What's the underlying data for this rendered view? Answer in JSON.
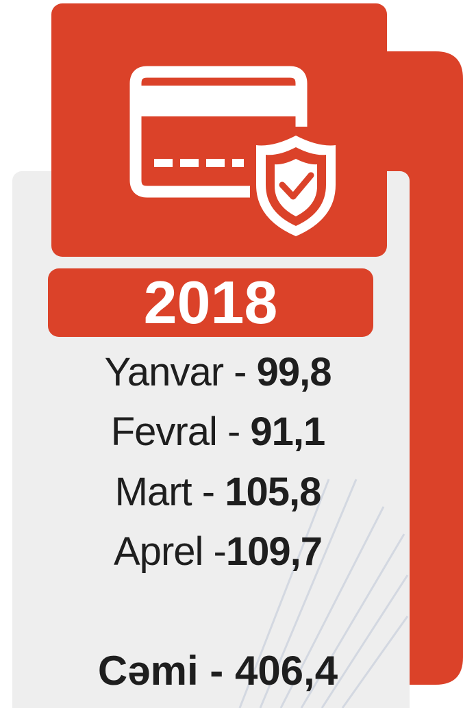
{
  "year": "2018",
  "rows": [
    {
      "label": "Yanvar - ",
      "value": "99,8"
    },
    {
      "label": "Fevral - ",
      "value": "91,1"
    },
    {
      "label": "Mart - ",
      "value": "105,8"
    },
    {
      "label": "Aprel -",
      "value": "109,7"
    }
  ],
  "total": "Cəmi - 406,4"
}
